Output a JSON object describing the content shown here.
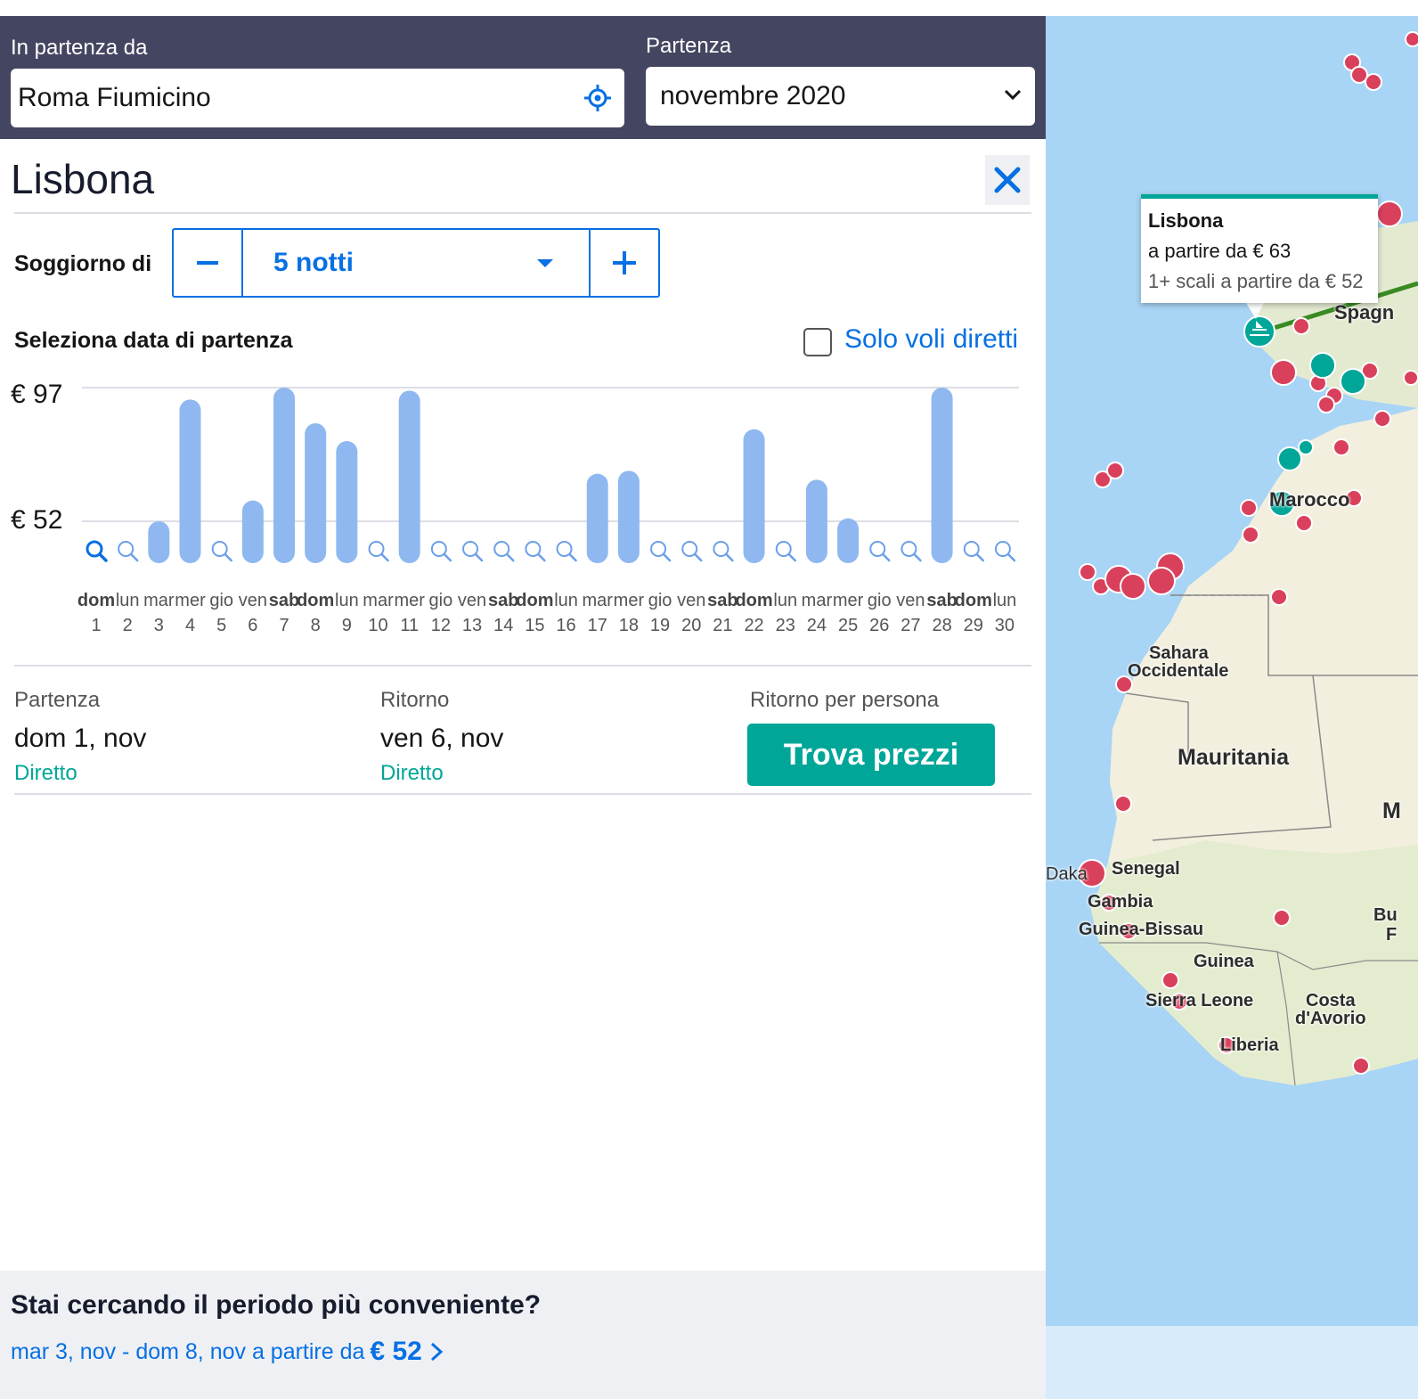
{
  "search": {
    "origin_label": "In partenza da",
    "origin_value": "Roma Fiumicino",
    "depart_label": "Partenza",
    "depart_value": "novembre 2020"
  },
  "destination": {
    "title": "Lisbona"
  },
  "stay": {
    "label": "Soggiorno di",
    "value": "5 notti"
  },
  "dates": {
    "select_label": "Seleziona data di partenza",
    "direct_only_label": "Solo voli diretti",
    "direct_only_checked": false
  },
  "chart_data": {
    "type": "bar",
    "ylim": [
      0,
      97
    ],
    "y_ticks": [
      {
        "label": "€ 97",
        "value": 97
      },
      {
        "label": "€ 52",
        "value": 52
      }
    ],
    "days": [
      {
        "dow": "dom",
        "day": 1,
        "value": null,
        "bold": true,
        "selected": true
      },
      {
        "dow": "lun",
        "day": 2,
        "value": null
      },
      {
        "dow": "mar",
        "day": 3,
        "value": 52
      },
      {
        "dow": "mer",
        "day": 4,
        "value": 93
      },
      {
        "dow": "gio",
        "day": 5,
        "value": null
      },
      {
        "dow": "ven",
        "day": 6,
        "value": 59
      },
      {
        "dow": "sab",
        "day": 7,
        "value": 97,
        "bold": true
      },
      {
        "dow": "dom",
        "day": 8,
        "value": 85,
        "bold": true
      },
      {
        "dow": "lun",
        "day": 9,
        "value": 79
      },
      {
        "dow": "mar",
        "day": 10,
        "value": null
      },
      {
        "dow": "mer",
        "day": 11,
        "value": 96
      },
      {
        "dow": "gio",
        "day": 12,
        "value": null
      },
      {
        "dow": "ven",
        "day": 13,
        "value": null
      },
      {
        "dow": "sab",
        "day": 14,
        "value": null,
        "bold": true
      },
      {
        "dow": "dom",
        "day": 15,
        "value": null,
        "bold": true
      },
      {
        "dow": "lun",
        "day": 16,
        "value": null
      },
      {
        "dow": "mar",
        "day": 17,
        "value": 68
      },
      {
        "dow": "mer",
        "day": 18,
        "value": 69
      },
      {
        "dow": "gio",
        "day": 19,
        "value": null
      },
      {
        "dow": "ven",
        "day": 20,
        "value": null
      },
      {
        "dow": "sab",
        "day": 21,
        "value": null,
        "bold": true
      },
      {
        "dow": "dom",
        "day": 22,
        "value": 83,
        "bold": true
      },
      {
        "dow": "lun",
        "day": 23,
        "value": null
      },
      {
        "dow": "mar",
        "day": 24,
        "value": 66
      },
      {
        "dow": "mer",
        "day": 25,
        "value": 53
      },
      {
        "dow": "gio",
        "day": 26,
        "value": null
      },
      {
        "dow": "ven",
        "day": 27,
        "value": null
      },
      {
        "dow": "sab",
        "day": 28,
        "value": 97,
        "bold": true
      },
      {
        "dow": "dom",
        "day": 29,
        "value": null,
        "bold": true
      },
      {
        "dow": "lun",
        "day": 30,
        "value": null
      }
    ]
  },
  "summary": {
    "departure_label": "Partenza",
    "departure_value": "dom 1, nov",
    "departure_sub": "Diretto",
    "return_label": "Ritorno",
    "return_value": "ven 6, nov",
    "return_sub": "Diretto",
    "price_label": "Ritorno per persona",
    "cta_label": "Trova prezzi"
  },
  "footer": {
    "title": "Stai cercando il periodo più conveniente?",
    "link_text": "mar 3, nov - dom 8, nov a partire da",
    "link_price": "€ 52"
  },
  "map": {
    "tooltip": {
      "title": "Lisbona",
      "line1": "a partire da € 63",
      "line2": "1+ scali a partire da € 52"
    },
    "labels": [
      "Spagn",
      "Marocco",
      "Sahara",
      "Occidentale",
      "Mauritania",
      "Senegal",
      "Gambia",
      "Guinea-Bissau",
      "Guinea",
      "Sierra Leone",
      "Costa",
      "d'Avorio",
      "Liberia",
      "Daka",
      "M",
      "Bu",
      "F"
    ],
    "colors": {
      "sea": "#a8d4f5",
      "land": "#f3efde",
      "dest_pin": "#d9405c",
      "direct_pin": "#00a698",
      "route": "#3a8a22"
    }
  }
}
